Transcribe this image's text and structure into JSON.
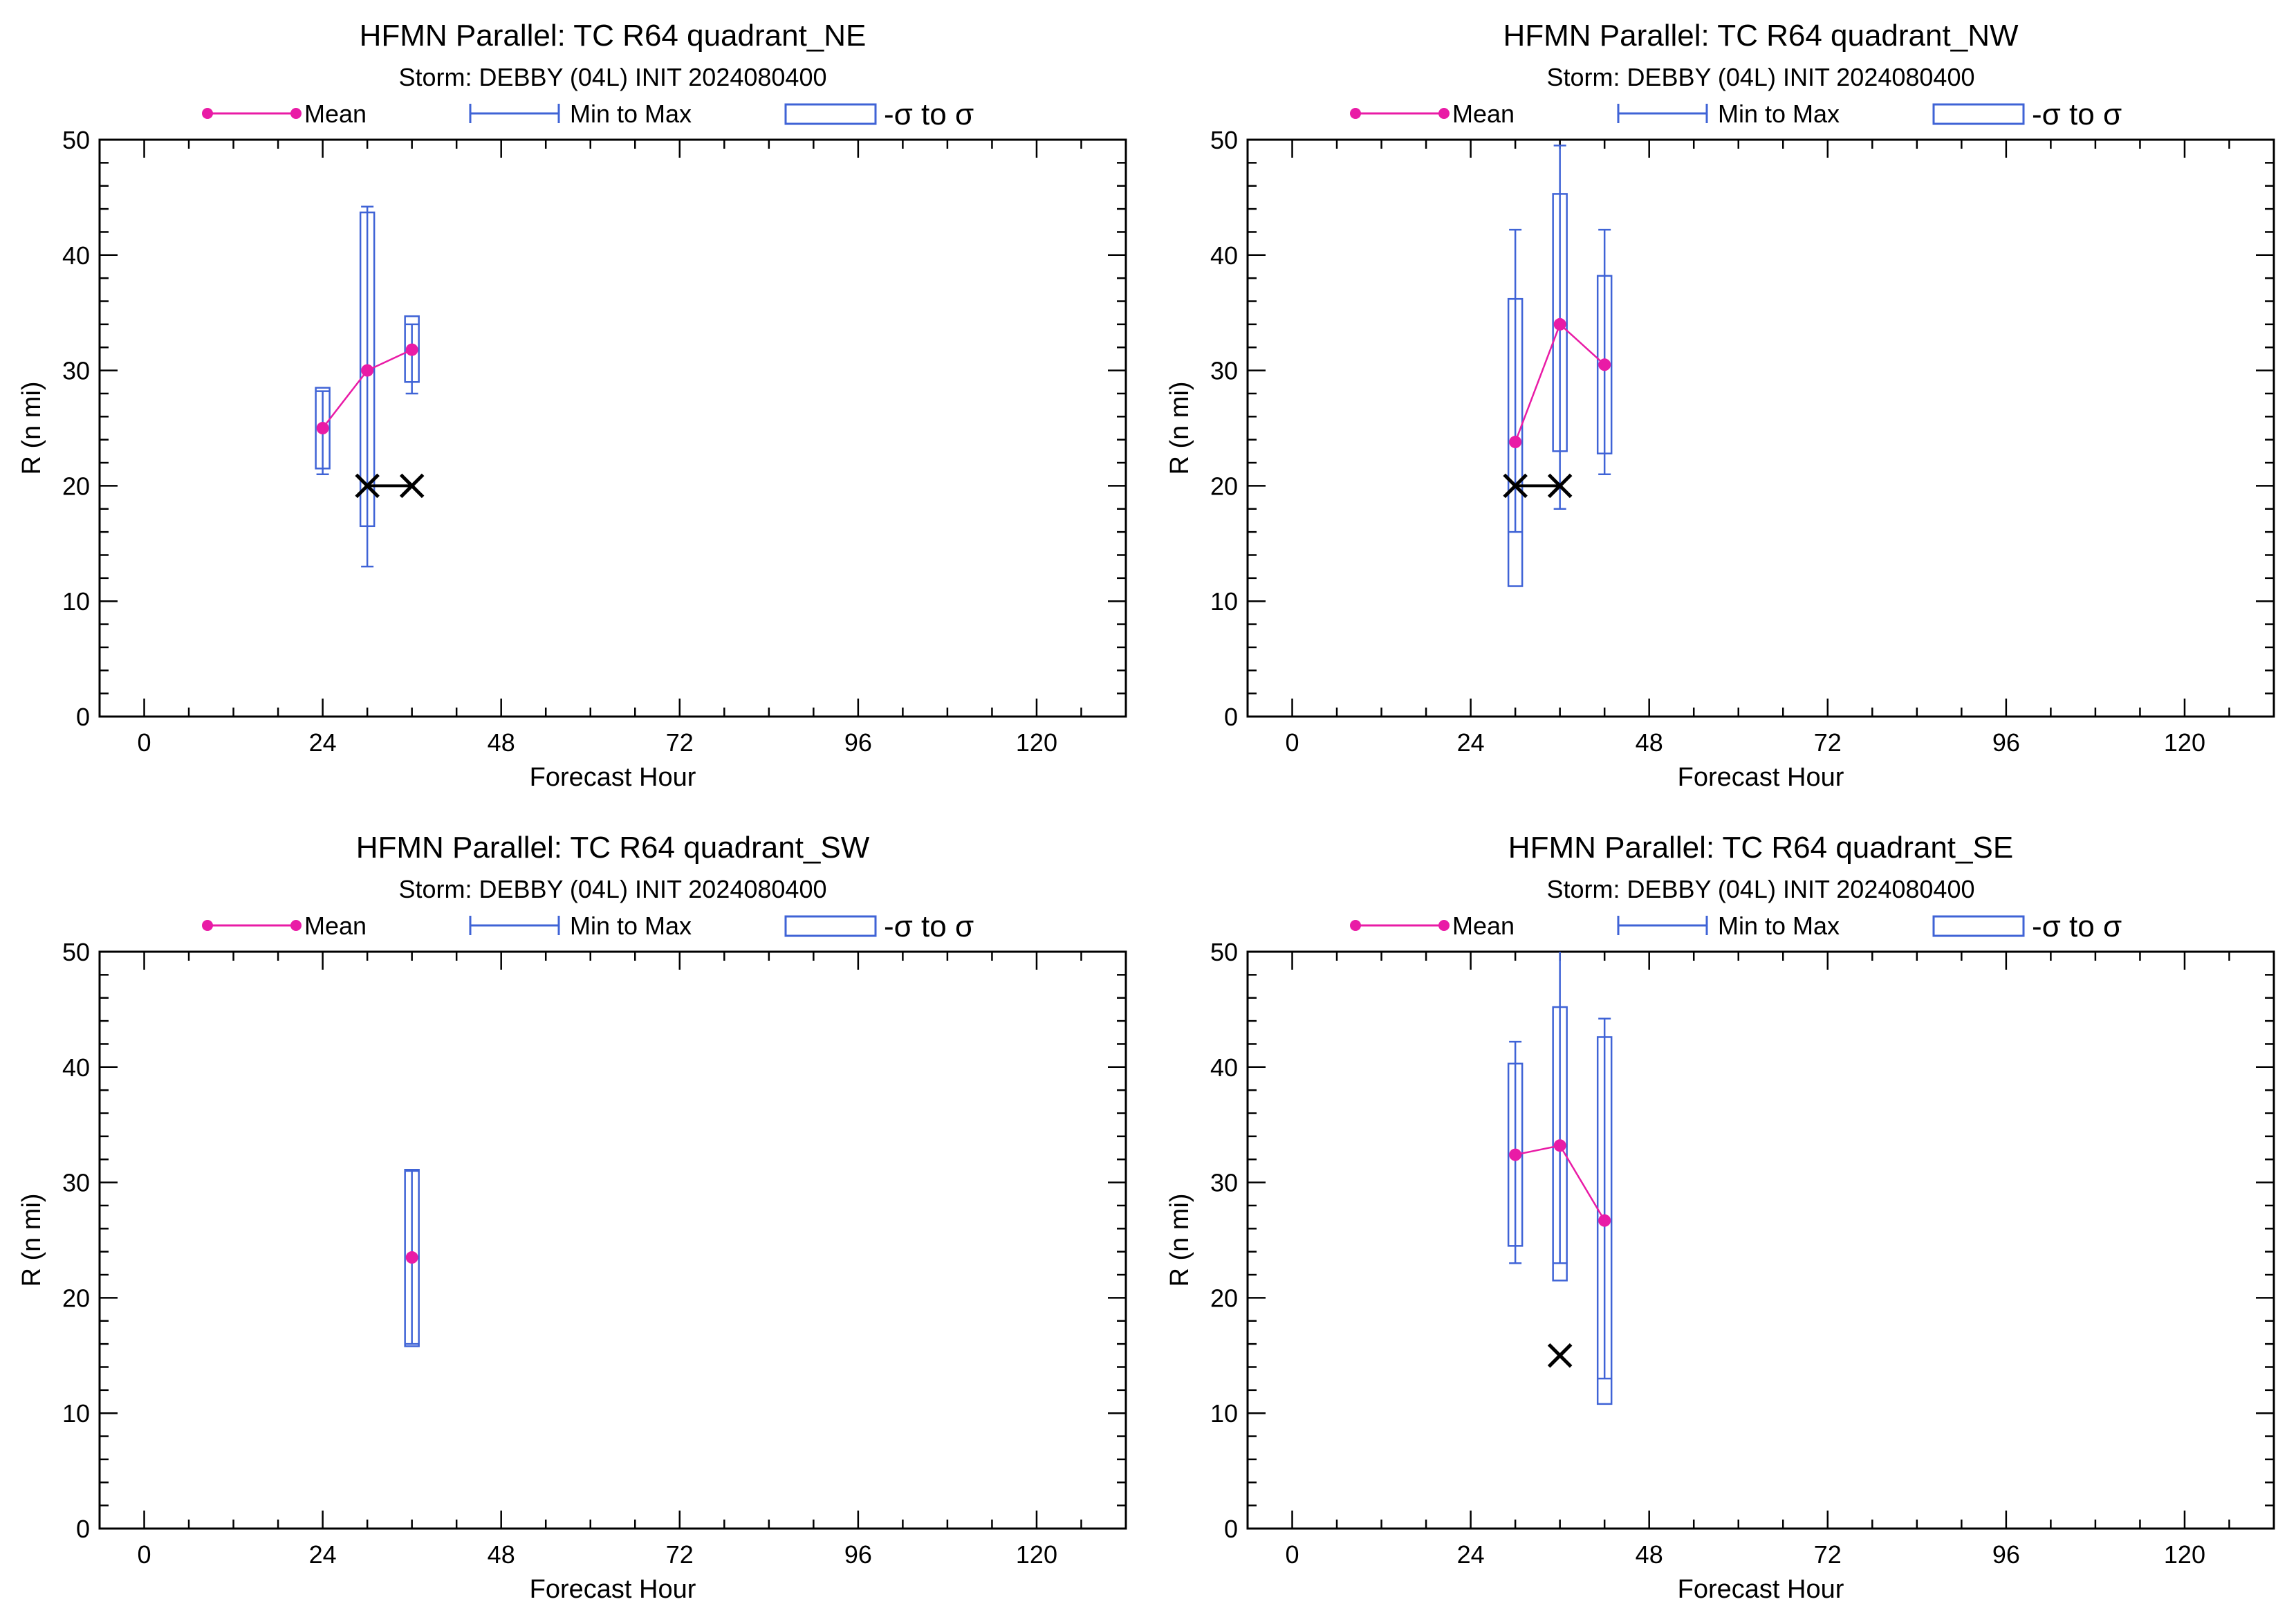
{
  "colors": {
    "mean": "#e91ba6",
    "range": "#3f63d6",
    "observed": "#000000",
    "axes": "#000000"
  },
  "chart_data": [
    {
      "type": "box",
      "title": "HFMN Parallel: TC  R64 quadrant_NE",
      "subtitle": "Storm: DEBBY (04L) INIT 2024080400",
      "xlabel": "Forecast Hour",
      "ylabel": "R (n mi)",
      "xlim": [
        -6,
        132
      ],
      "ylim": [
        0,
        50
      ],
      "xticks": [
        0,
        24,
        48,
        72,
        96,
        120
      ],
      "yticks": [
        0,
        10,
        20,
        30,
        40,
        50
      ],
      "legend": [
        {
          "label": "Mean",
          "kind": "mean"
        },
        {
          "label": "Min to Max",
          "kind": "range"
        },
        {
          "label": "-σ to σ",
          "kind": "sigma"
        }
      ],
      "legend_position": "top",
      "boxes": [
        {
          "x": 24,
          "min": 21,
          "max": 28.2,
          "sd_lo": 21.5,
          "sd_hi": 28.5
        },
        {
          "x": 30,
          "min": 13,
          "max": 44.2,
          "sd_lo": 16.5,
          "sd_hi": 43.7
        },
        {
          "x": 36,
          "min": 28,
          "max": 34,
          "sd_lo": 29,
          "sd_hi": 34.7
        }
      ],
      "mean": {
        "x": [
          24,
          30,
          36
        ],
        "y": [
          25,
          30,
          31.8
        ]
      },
      "observed": {
        "x": [
          30,
          36
        ],
        "y": [
          20,
          20
        ]
      }
    },
    {
      "type": "box",
      "title": "HFMN Parallel: TC  R64 quadrant_NW",
      "subtitle": "Storm: DEBBY (04L) INIT 2024080400",
      "xlabel": "Forecast Hour",
      "ylabel": "R (n mi)",
      "xlim": [
        -6,
        132
      ],
      "ylim": [
        0,
        50
      ],
      "xticks": [
        0,
        24,
        48,
        72,
        96,
        120
      ],
      "yticks": [
        0,
        10,
        20,
        30,
        40,
        50
      ],
      "legend": [
        {
          "label": "Mean",
          "kind": "mean"
        },
        {
          "label": "Min to Max",
          "kind": "range"
        },
        {
          "label": "-σ to σ",
          "kind": "sigma"
        }
      ],
      "legend_position": "top",
      "boxes": [
        {
          "x": 30,
          "min": 16,
          "max": 42.2,
          "sd_lo": 11.3,
          "sd_hi": 36.2
        },
        {
          "x": 36,
          "min": 18,
          "max": 49.5,
          "sd_lo": 23,
          "sd_hi": 45.3
        },
        {
          "x": 42,
          "min": 21,
          "max": 42.2,
          "sd_lo": 22.8,
          "sd_hi": 38.2
        }
      ],
      "mean": {
        "x": [
          30,
          36,
          42
        ],
        "y": [
          23.8,
          34,
          30.5
        ]
      },
      "observed": {
        "x": [
          30,
          36
        ],
        "y": [
          20,
          20
        ]
      }
    },
    {
      "type": "box",
      "title": "HFMN Parallel: TC  R64 quadrant_SW",
      "subtitle": "Storm: DEBBY (04L) INIT 2024080400",
      "xlabel": "Forecast Hour",
      "ylabel": "R (n mi)",
      "xlim": [
        -6,
        132
      ],
      "ylim": [
        0,
        50
      ],
      "xticks": [
        0,
        24,
        48,
        72,
        96,
        120
      ],
      "yticks": [
        0,
        10,
        20,
        30,
        40,
        50
      ],
      "legend": [
        {
          "label": "Mean",
          "kind": "mean"
        },
        {
          "label": "Min to Max",
          "kind": "range"
        },
        {
          "label": "-σ to σ",
          "kind": "sigma"
        }
      ],
      "legend_position": "top",
      "boxes": [
        {
          "x": 36,
          "min": 16,
          "max": 31,
          "sd_lo": 15.8,
          "sd_hi": 31.1
        }
      ],
      "mean": {
        "x": [
          36
        ],
        "y": [
          23.5
        ]
      },
      "observed": {
        "x": [],
        "y": []
      }
    },
    {
      "type": "box",
      "title": "HFMN Parallel: TC  R64 quadrant_SE",
      "subtitle": "Storm: DEBBY (04L) INIT 2024080400",
      "xlabel": "Forecast Hour",
      "ylabel": "R (n mi)",
      "xlim": [
        -6,
        132
      ],
      "ylim": [
        0,
        50
      ],
      "xticks": [
        0,
        24,
        48,
        72,
        96,
        120
      ],
      "yticks": [
        0,
        10,
        20,
        30,
        40,
        50
      ],
      "legend": [
        {
          "label": "Mean",
          "kind": "mean"
        },
        {
          "label": "Min to Max",
          "kind": "range"
        },
        {
          "label": "-σ to σ",
          "kind": "sigma"
        }
      ],
      "legend_position": "top",
      "boxes": [
        {
          "x": 30,
          "min": 23,
          "max": 42.2,
          "sd_lo": 24.5,
          "sd_hi": 40.3
        },
        {
          "x": 36,
          "min": 23,
          "max": 50.5,
          "sd_lo": 21.5,
          "sd_hi": 45.2
        },
        {
          "x": 42,
          "min": 13,
          "max": 44.2,
          "sd_lo": 10.8,
          "sd_hi": 42.6
        }
      ],
      "mean": {
        "x": [
          30,
          36,
          42
        ],
        "y": [
          32.4,
          33.2,
          26.7
        ]
      },
      "observed": {
        "x": [
          36
        ],
        "y": [
          15
        ]
      }
    }
  ]
}
